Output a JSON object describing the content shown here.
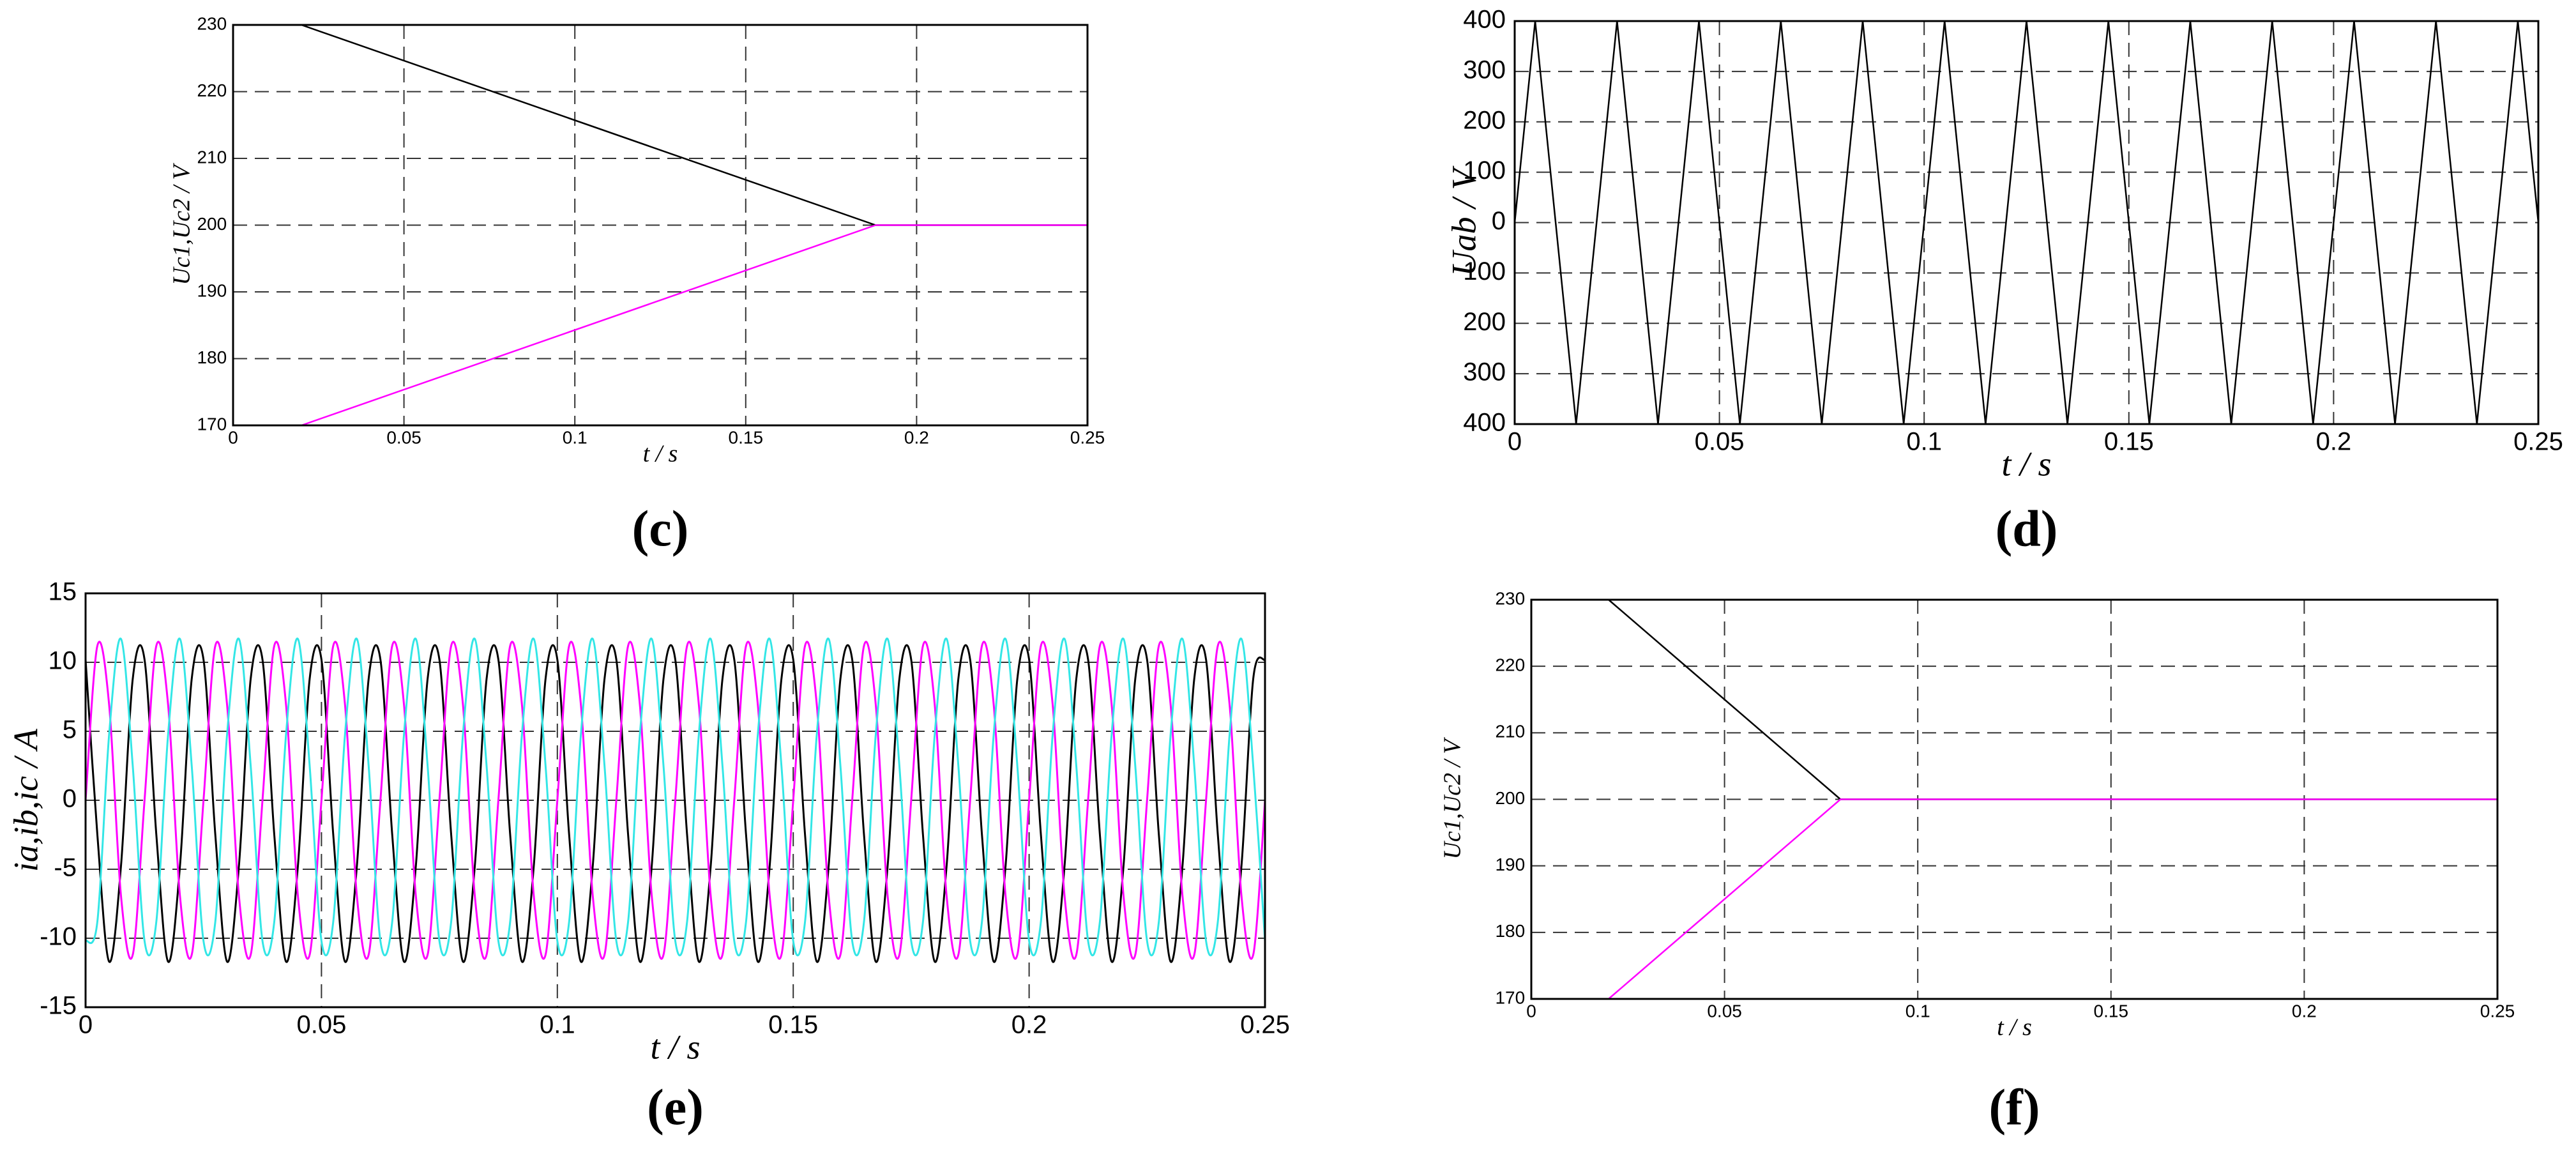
{
  "chart_data": [
    {
      "type": "line",
      "label": "(c)",
      "xlabel": "t / s",
      "ylabel": "Uc1,Uc2 / V",
      "x": [
        0,
        0.02,
        0.188,
        0.25
      ],
      "series": [
        {
          "color": "#000000",
          "values": [
            230,
            230,
            200,
            200
          ]
        },
        {
          "color": "#ff00ff",
          "values": [
            170,
            170,
            200,
            200
          ]
        }
      ],
      "xlim": [
        0,
        0.25
      ],
      "xticks": [
        0,
        0.05,
        0.1,
        0.15,
        0.2,
        0.25
      ],
      "ylim": [
        170,
        230
      ],
      "yticks": [
        170,
        180,
        190,
        200,
        210,
        220,
        230
      ],
      "grid": true
    },
    {
      "type": "line",
      "label": "(d)",
      "xlabel": "t / s",
      "ylabel": "Uab / V",
      "x": [
        0,
        0.0025,
        0.005,
        0.0075,
        0.01,
        0.0125,
        0.015,
        0.0175,
        0.02,
        0.0225,
        0.025,
        0.0275,
        0.03,
        0.0325,
        0.035,
        0.0375,
        0.04,
        0.0425,
        0.045,
        0.0475,
        0.05,
        0.0525,
        0.055,
        0.0575,
        0.06,
        0.0625,
        0.065,
        0.0675,
        0.07,
        0.0725,
        0.075,
        0.0775,
        0.08,
        0.0825,
        0.085,
        0.0875,
        0.09,
        0.0925,
        0.095,
        0.0975,
        0.1,
        0.1025,
        0.105,
        0.1075,
        0.11,
        0.1125,
        0.115,
        0.1175,
        0.12,
        0.1225,
        0.125,
        0.1275,
        0.13,
        0.1325,
        0.135,
        0.1375,
        0.14,
        0.1425,
        0.145,
        0.1475,
        0.15,
        0.1525,
        0.155,
        0.1575,
        0.16,
        0.1625,
        0.165,
        0.1675,
        0.17,
        0.1725,
        0.175,
        0.1775,
        0.18,
        0.1825,
        0.185,
        0.1875,
        0.19,
        0.1925,
        0.195,
        0.1975,
        0.2,
        0.2025,
        0.205,
        0.2075,
        0.21,
        0.2125,
        0.215,
        0.2175,
        0.22,
        0.2225,
        0.225,
        0.2275,
        0.23,
        0.2325,
        0.235,
        0.2375,
        0.24,
        0.2425,
        0.245,
        0.2475,
        0.25
      ],
      "series": [
        {
          "color": "#000000",
          "values": [
            0,
            200,
            400,
            200,
            0,
            -200,
            -400,
            -200,
            0,
            200,
            400,
            200,
            0,
            -200,
            -400,
            -200,
            0,
            200,
            400,
            200,
            0,
            -200,
            -400,
            -200,
            0,
            200,
            400,
            200,
            0,
            -200,
            -400,
            -200,
            0,
            200,
            400,
            200,
            0,
            -200,
            -400,
            -200,
            0,
            200,
            400,
            200,
            0,
            -200,
            -400,
            -200,
            0,
            200,
            400,
            200,
            0,
            -200,
            -400,
            -200,
            0,
            200,
            400,
            200,
            0,
            -200,
            -400,
            -200,
            0,
            200,
            400,
            200,
            0,
            -200,
            -400,
            -200,
            0,
            200,
            400,
            200,
            0,
            -200,
            -400,
            -200,
            0,
            200,
            400,
            200,
            0,
            -200,
            -400,
            -200,
            0,
            200,
            400,
            200,
            0,
            -200,
            -400,
            -200,
            0,
            200,
            400,
            200,
            0
          ]
        }
      ],
      "xlim": [
        0,
        0.25
      ],
      "xticks": [
        0,
        0.05,
        0.1,
        0.15,
        0.2,
        0.25
      ],
      "ylim": [
        -400,
        400
      ],
      "yticks": [
        {
          "value": -400,
          "label": "400"
        },
        {
          "value": -300,
          "label": "300"
        },
        {
          "value": -200,
          "label": "200"
        },
        {
          "value": -100,
          "label": "100"
        },
        0,
        100,
        200,
        300,
        400
      ],
      "grid": true
    },
    {
      "type": "line",
      "label": "(e)",
      "xlabel": "t / s",
      "ylabel": "ia,ib,ic / A",
      "smooth": true,
      "x": [
        0,
        0.0025,
        0.005,
        0.0075,
        0.01,
        0.0125,
        0.015,
        0.0175,
        0.02,
        0.0225,
        0.025,
        0.0275,
        0.03,
        0.0325,
        0.035,
        0.0375,
        0.04,
        0.0425,
        0.045,
        0.0475,
        0.05,
        0.0525,
        0.055,
        0.0575,
        0.06,
        0.0625,
        0.065,
        0.0675,
        0.07,
        0.0725,
        0.075,
        0.0775,
        0.08,
        0.0825,
        0.085,
        0.0875,
        0.09,
        0.0925,
        0.095,
        0.0975,
        0.1,
        0.1025,
        0.105,
        0.1075,
        0.11,
        0.1125,
        0.115,
        0.1175,
        0.12,
        0.1225,
        0.125,
        0.1275,
        0.13,
        0.1325,
        0.135,
        0.1375,
        0.14,
        0.1425,
        0.145,
        0.1475,
        0.15,
        0.1525,
        0.155,
        0.1575,
        0.16,
        0.1625,
        0.165,
        0.1675,
        0.17,
        0.1725,
        0.175,
        0.1775,
        0.18,
        0.1825,
        0.185,
        0.1875,
        0.19,
        0.1925,
        0.195,
        0.1975,
        0.2,
        0.2025,
        0.205,
        0.2075,
        0.21,
        0.2125,
        0.215,
        0.2175,
        0.22,
        0.2225,
        0.225,
        0.2275,
        0.23,
        0.2325,
        0.235,
        0.2375,
        0.24,
        0.2425,
        0.245,
        0.2475,
        0.25
      ],
      "series": [
        {
          "color": "#000000",
          "values": [
            10.2,
            -2.5,
            -11.7,
            -4.8,
            8.8,
            10.2,
            -2.5,
            -11.7,
            -4.8,
            8.8,
            10.2,
            -2.5,
            -11.7,
            -4.8,
            8.8,
            10.2,
            -2.5,
            -11.7,
            -4.8,
            8.8,
            10.2,
            -2.5,
            -11.7,
            -4.8,
            8.8,
            10.2,
            -2.5,
            -11.7,
            -4.8,
            8.8,
            10.2,
            -2.5,
            -11.7,
            -4.8,
            8.8,
            10.2,
            -2.5,
            -11.7,
            -4.8,
            8.8,
            10.2,
            -2.5,
            -11.7,
            -4.8,
            8.8,
            10.2,
            -2.5,
            -11.7,
            -4.8,
            8.8,
            10.2,
            -2.5,
            -11.7,
            -4.8,
            8.8,
            10.2,
            -2.5,
            -11.7,
            -4.8,
            8.8,
            10.2,
            -2.5,
            -11.7,
            -4.8,
            8.8,
            10.2,
            -2.5,
            -11.7,
            -4.8,
            8.8,
            10.2,
            -2.5,
            -11.7,
            -4.8,
            8.8,
            10.2,
            -2.5,
            -11.7,
            -4.8,
            8.8,
            10.2,
            -2.5,
            -11.7,
            -4.8,
            8.8,
            10.2,
            -2.5,
            -11.7,
            -4.8,
            8.8,
            10.2,
            -2.5,
            -11.7,
            -4.8,
            8.8,
            10.2,
            -2.5,
            -11.7,
            -4.8,
            8.8,
            10.2
          ]
        },
        {
          "color": "#ff00ff",
          "values": [
            0,
            11.2,
            6.9,
            -6.9,
            -11.2,
            0,
            11.2,
            6.9,
            -6.9,
            -11.2,
            0,
            11.2,
            6.9,
            -6.9,
            -11.2,
            0,
            11.2,
            6.9,
            -6.9,
            -11.2,
            0,
            11.2,
            6.9,
            -6.9,
            -11.2,
            0,
            11.2,
            6.9,
            -6.9,
            -11.2,
            0,
            11.2,
            6.9,
            -6.9,
            -11.2,
            0,
            11.2,
            6.9,
            -6.9,
            -11.2,
            0,
            11.2,
            6.9,
            -6.9,
            -11.2,
            0,
            11.2,
            6.9,
            -6.9,
            -11.2,
            0,
            11.2,
            6.9,
            -6.9,
            -11.2,
            0,
            11.2,
            6.9,
            -6.9,
            -11.2,
            0,
            11.2,
            6.9,
            -6.9,
            -11.2,
            0,
            11.2,
            6.9,
            -6.9,
            -11.2,
            0,
            11.2,
            6.9,
            -6.9,
            -11.2,
            0,
            11.2,
            6.9,
            -6.9,
            -11.2,
            0,
            11.2,
            6.9,
            -6.9,
            -11.2,
            0,
            11.2,
            6.9,
            -6.9,
            -11.2,
            0,
            11.2,
            6.9,
            -6.9,
            -11.2,
            0,
            11.2,
            6.9,
            -6.9,
            -11.2,
            0
          ]
        },
        {
          "color": "#33e6e6",
          "values": [
            -10.2,
            -8.8,
            4.8,
            11.7,
            2.5,
            -10.2,
            -8.8,
            4.8,
            11.7,
            2.5,
            -10.2,
            -8.8,
            4.8,
            11.7,
            2.5,
            -10.2,
            -8.8,
            4.8,
            11.7,
            2.5,
            -10.2,
            -8.8,
            4.8,
            11.7,
            2.5,
            -10.2,
            -8.8,
            4.8,
            11.7,
            2.5,
            -10.2,
            -8.8,
            4.8,
            11.7,
            2.5,
            -10.2,
            -8.8,
            4.8,
            11.7,
            2.5,
            -10.2,
            -8.8,
            4.8,
            11.7,
            2.5,
            -10.2,
            -8.8,
            4.8,
            11.7,
            2.5,
            -10.2,
            -8.8,
            4.8,
            11.7,
            2.5,
            -10.2,
            -8.8,
            4.8,
            11.7,
            2.5,
            -10.2,
            -8.8,
            4.8,
            11.7,
            2.5,
            -10.2,
            -8.8,
            4.8,
            11.7,
            2.5,
            -10.2,
            -8.8,
            4.8,
            11.7,
            2.5,
            -10.2,
            -8.8,
            4.8,
            11.7,
            2.5,
            -10.2,
            -8.8,
            4.8,
            11.7,
            2.5,
            -10.2,
            -8.8,
            4.8,
            11.7,
            2.5,
            -10.2,
            -8.8,
            4.8,
            11.7,
            2.5,
            -10.2,
            -8.8,
            4.8,
            11.7,
            2.5,
            -10.2
          ]
        }
      ],
      "xlim": [
        0,
        0.25
      ],
      "xticks": [
        0,
        0.05,
        0.1,
        0.15,
        0.2,
        0.25
      ],
      "ylim": [
        -15,
        15
      ],
      "yticks": [
        -15,
        -10,
        -5,
        0,
        5,
        10,
        15
      ],
      "grid": true
    },
    {
      "type": "line",
      "label": "(f)",
      "xlabel": "t / s",
      "ylabel": "Uc1,Uc2 / V",
      "x": [
        0,
        0.02,
        0.08,
        0.25
      ],
      "series": [
        {
          "color": "#000000",
          "values": [
            230,
            230,
            200,
            200
          ]
        },
        {
          "color": "#ff00ff",
          "values": [
            170,
            170,
            200,
            200
          ]
        }
      ],
      "xlim": [
        0,
        0.25
      ],
      "xticks": [
        0,
        0.05,
        0.1,
        0.15,
        0.2,
        0.25
      ],
      "ylim": [
        170,
        230
      ],
      "yticks": [
        170,
        180,
        190,
        200,
        210,
        220,
        230
      ],
      "grid": true
    }
  ]
}
